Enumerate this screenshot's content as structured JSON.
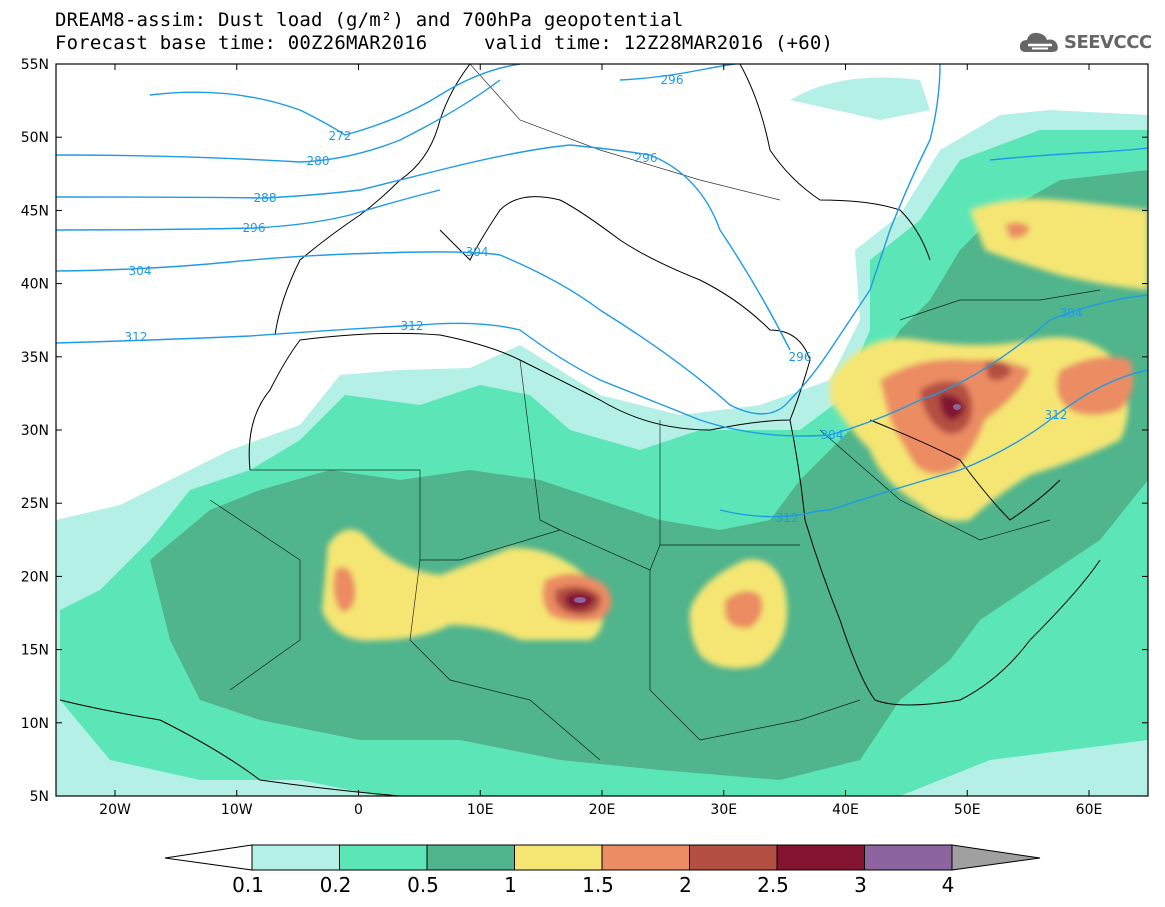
{
  "header": {
    "title_line1": "DREAM8-assim: Dust load (g/m²) and 700hPa geopotential",
    "base_time_label": "Forecast base time: 00Z26MAR2016",
    "valid_time_label": "valid time: 12Z28MAR2016 (+60)",
    "logo_text": "SEEVCCC"
  },
  "map": {
    "lat_labels": [
      "55N",
      "50N",
      "45N",
      "40N",
      "35N",
      "30N",
      "25N",
      "20N",
      "15N",
      "10N",
      "5N"
    ],
    "lon_labels": [
      "20W",
      "10W",
      "0",
      "10E",
      "20E",
      "30E",
      "40E",
      "50E",
      "60E"
    ],
    "contour_labels": [
      "272",
      "280",
      "288",
      "296",
      "304",
      "312",
      "296",
      "304",
      "312",
      "296",
      "296",
      "304",
      "312",
      "304",
      "312"
    ]
  },
  "colorbar": {
    "levels": [
      "0.1",
      "0.2",
      "0.5",
      "1",
      "1.5",
      "2",
      "2.5",
      "3",
      "4"
    ],
    "colors": [
      "#b4f0e6",
      "#5ce6b8",
      "#50b48c",
      "#f5e673",
      "#eb8c64",
      "#b45042",
      "#821432",
      "#8c64a0",
      "#a0a0a0"
    ],
    "under_color": "#ffffff"
  }
}
